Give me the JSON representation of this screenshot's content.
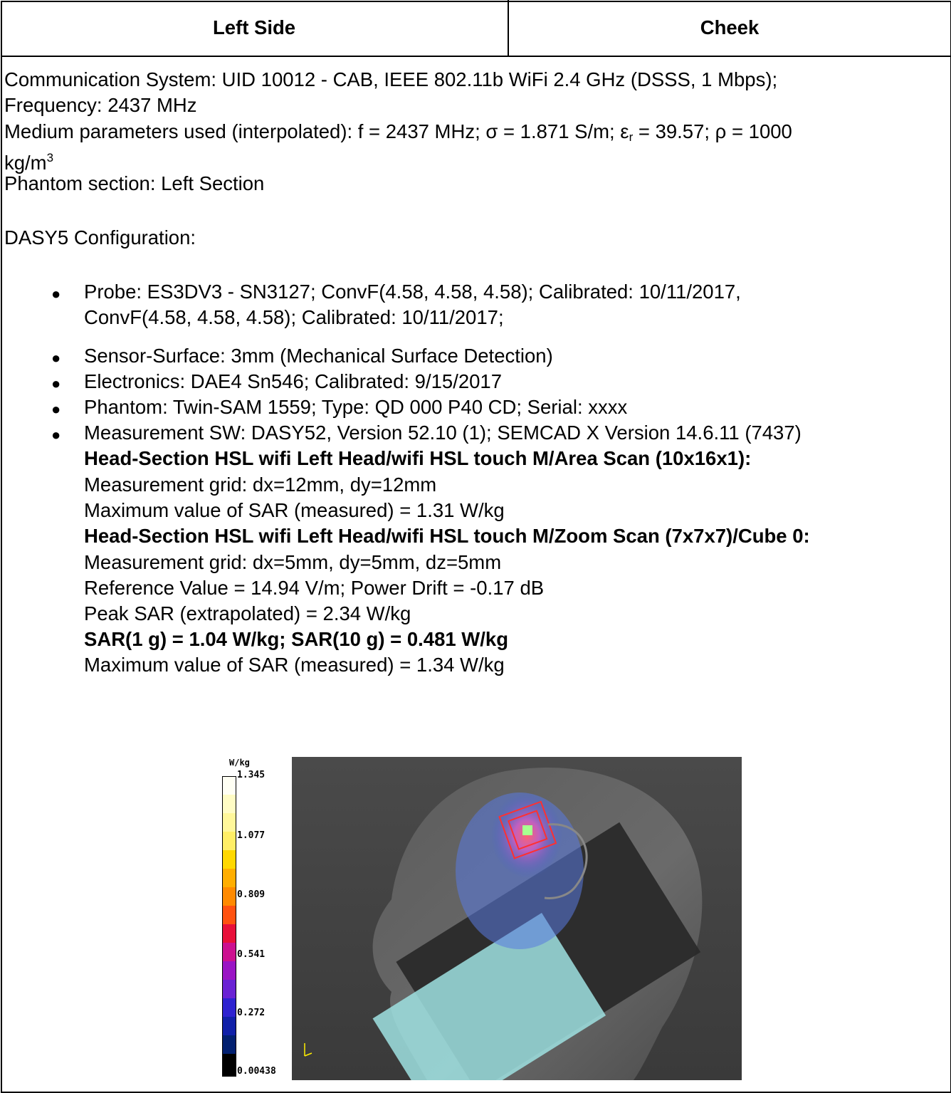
{
  "table": {
    "header": [
      "Left Side",
      "Cheek"
    ],
    "communication": [
      "Communication System: UID 10012 - CAB, IEEE 802.11b WiFi 2.4 GHz (DSSS, 1 Mbps);",
      "Frequency: 2437 MHz"
    ],
    "medium": [
      "Medium parameters used (interpolated): f = 2437 MHz; σ = 1.871 S/m; ε",
      "r",
      " = 39.57; ρ = 1000",
      "kg/m",
      "3"
    ],
    "phantom_section": "Phantom section: Left Section",
    "config_title": "DASY5 Configuration:",
    "bullets": [
      [
        "Probe: ES3DV3 - SN3127; ConvF(4.58, 4.58, 4.58); Calibrated: 10/11/2017,",
        "ConvF(4.58, 4.58, 4.58); Calibrated: 10/11/2017;"
      ],
      [
        "Sensor-Surface: 3mm (Mechanical Surface Detection)"
      ],
      [
        "Electronics: DAE4 Sn546; Calibrated: 9/15/2017"
      ],
      [
        "Phantom: Twin-SAM 1559; Type: QD 000 P40 CD; Serial: xxxx"
      ],
      [
        "Measurement SW: DASY52, Version 52.10 (1); SEMCAD X Version 14.6.11 (7437)"
      ]
    ],
    "area_scan": {
      "title": "Head-Section HSL wifi Left Head/wifi HSL touch M/Area Scan (10x16x1):",
      "lines": [
        "Measurement grid: dx=12mm, dy=12mm",
        "Maximum value of SAR (measured) = 1.31 W/kg"
      ]
    },
    "zoom_scan": {
      "title": "Head-Section HSL wifi Left Head/wifi HSL touch M/Zoom Scan (7x7x7)/Cube 0:",
      "lines": [
        "Measurement grid: dx=5mm, dy=5mm, dz=5mm",
        "Reference Value = 14.94 V/m; Power Drift = -0.17 dB",
        "Peak SAR (extrapolated) = 2.34 W/kg"
      ],
      "result": "SAR(1 g) = 1.04 W/kg; SAR(10 g) = 0.481 W/kg",
      "max_value": "Maximum value of SAR (measured) = 1.34 W/kg"
    },
    "colorbar": {
      "unit": "W/kg",
      "ticks": [
        "1.345",
        "1.077",
        "0.809",
        "0.541",
        "0.272",
        "0.00438"
      ]
    }
  }
}
